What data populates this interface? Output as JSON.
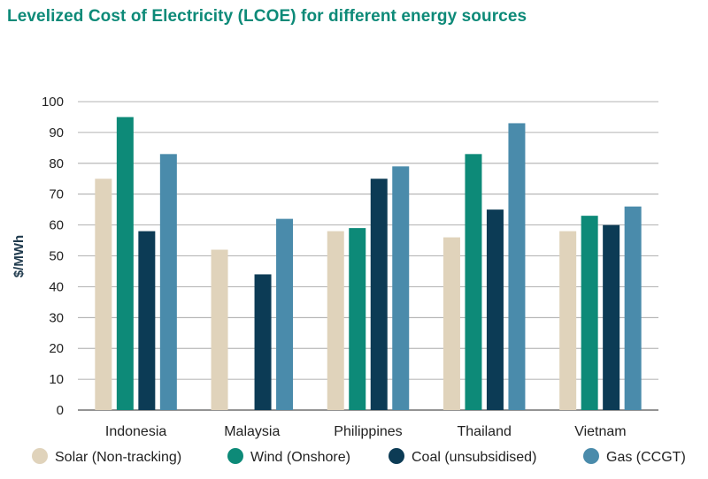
{
  "chart_data": {
    "type": "bar",
    "title": "Levelized Cost of Electricity (LCOE) for different energy sources",
    "xlabel": "",
    "ylabel": "$/MWh",
    "ylim": [
      0,
      100
    ],
    "yticks": [
      0,
      10,
      20,
      30,
      40,
      50,
      60,
      70,
      80,
      90,
      100
    ],
    "grid": true,
    "legend_position": "bottom",
    "categories": [
      "Indonesia",
      "Malaysia",
      "Philippines",
      "Thailand",
      "Vietnam"
    ],
    "series": [
      {
        "name": "Solar (Non-tracking)",
        "color": "#e0d3bb",
        "values": [
          75,
          52,
          58,
          56,
          58
        ]
      },
      {
        "name": "Wind (Onshore)",
        "color": "#0d8a78",
        "values": [
          95,
          null,
          59,
          83,
          63
        ]
      },
      {
        "name": "Coal (unsubsidised)",
        "color": "#0c3b55",
        "values": [
          58,
          44,
          75,
          65,
          60
        ]
      },
      {
        "name": "Gas (CCGT)",
        "color": "#4a8bab",
        "values": [
          83,
          62,
          79,
          93,
          66
        ]
      }
    ]
  }
}
